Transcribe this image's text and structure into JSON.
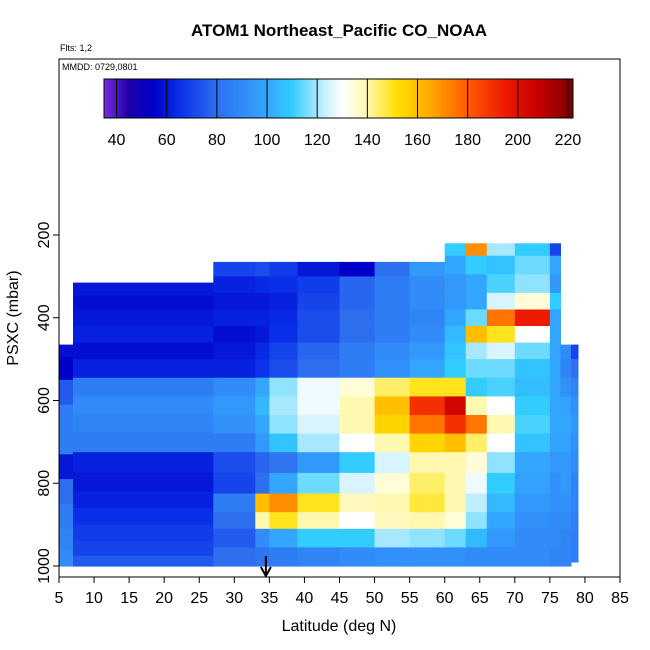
{
  "chart_data": {
    "type": "heatmap",
    "title": "ATOM1 Northeast_Pacific CO_NOAA",
    "flights_label": "Flts: 1,2",
    "date_label": "MMDD: 0729,0801",
    "xlabel": "Latitude (deg N)",
    "ylabel": "PSXC (mbar)",
    "xlim": [
      5,
      85
    ],
    "ylim": [
      1000,
      0
    ],
    "x_ticks": [
      5,
      10,
      15,
      20,
      25,
      30,
      35,
      40,
      45,
      50,
      55,
      60,
      65,
      70,
      75,
      80,
      85
    ],
    "y_ticks": [
      200,
      400,
      600,
      800,
      1000
    ],
    "colorbar": {
      "range": [
        35,
        222
      ],
      "ticks": [
        40,
        60,
        80,
        100,
        120,
        140,
        160,
        180,
        200,
        220
      ],
      "stops": [
        {
          "v": 35,
          "color": "#7a2be0"
        },
        {
          "v": 45,
          "color": "#1c00a8"
        },
        {
          "v": 55,
          "color": "#0000c8"
        },
        {
          "v": 65,
          "color": "#0a2fe8"
        },
        {
          "v": 80,
          "color": "#2e6ff0"
        },
        {
          "v": 100,
          "color": "#33a6ff"
        },
        {
          "v": 110,
          "color": "#33ccff"
        },
        {
          "v": 122,
          "color": "#bfeeff"
        },
        {
          "v": 130,
          "color": "#ffffff"
        },
        {
          "v": 140,
          "color": "#fff8b0"
        },
        {
          "v": 152,
          "color": "#ffe000"
        },
        {
          "v": 165,
          "color": "#ffaa00"
        },
        {
          "v": 180,
          "color": "#ff5a00"
        },
        {
          "v": 195,
          "color": "#ee1a00"
        },
        {
          "v": 208,
          "color": "#c80000"
        },
        {
          "v": 222,
          "color": "#7a0000"
        }
      ]
    },
    "arrow_latitude": 34.5,
    "profiles": [
      {
        "lat": [
          5.0,
          7.0
        ],
        "p": [
          [
            465,
            1000
          ]
        ],
        "values": [
          [
            470,
            58
          ],
          [
            520,
            55
          ],
          [
            580,
            75
          ],
          [
            640,
            85
          ],
          [
            700,
            85
          ],
          [
            760,
            60
          ],
          [
            820,
            80
          ],
          [
            880,
            85
          ],
          [
            940,
            88
          ],
          [
            980,
            90
          ]
        ]
      },
      {
        "lat": [
          7.0,
          27.0
        ],
        "p": [
          [
            315,
            1000
          ]
        ],
        "values": [
          [
            330,
            60
          ],
          [
            360,
            58
          ],
          [
            400,
            60
          ],
          [
            440,
            62
          ],
          [
            480,
            58
          ],
          [
            520,
            62
          ],
          [
            570,
            85
          ],
          [
            610,
            90
          ],
          [
            650,
            88
          ],
          [
            700,
            85
          ],
          [
            750,
            62
          ],
          [
            800,
            60
          ],
          [
            840,
            62
          ],
          [
            880,
            65
          ],
          [
            920,
            68
          ],
          [
            960,
            70
          ],
          [
            990,
            75
          ]
        ]
      },
      {
        "lat": [
          27.0,
          33.0
        ],
        "p": [
          [
            265,
            1000
          ]
        ],
        "values": [
          [
            280,
            70
          ],
          [
            320,
            62
          ],
          [
            360,
            60
          ],
          [
            400,
            62
          ],
          [
            440,
            58
          ],
          [
            480,
            60
          ],
          [
            520,
            62
          ],
          [
            570,
            90
          ],
          [
            610,
            95
          ],
          [
            660,
            92
          ],
          [
            700,
            85
          ],
          [
            750,
            72
          ],
          [
            800,
            70
          ],
          [
            850,
            85
          ],
          [
            890,
            80
          ],
          [
            930,
            75
          ],
          [
            980,
            80
          ]
        ]
      },
      {
        "lat": [
          33.0,
          35.0
        ],
        "p": [
          [
            265,
            1000
          ]
        ],
        "values": [
          [
            280,
            72
          ],
          [
            320,
            64
          ],
          [
            360,
            60
          ],
          [
            400,
            62
          ],
          [
            440,
            60
          ],
          [
            480,
            64
          ],
          [
            520,
            66
          ],
          [
            570,
            100
          ],
          [
            610,
            105
          ],
          [
            660,
            100
          ],
          [
            700,
            95
          ],
          [
            750,
            78
          ],
          [
            800,
            80
          ],
          [
            850,
            160
          ],
          [
            890,
            140
          ],
          [
            930,
            90
          ],
          [
            980,
            82
          ]
        ]
      },
      {
        "lat": [
          35.0,
          39.0
        ],
        "p": [
          [
            265,
            1000
          ]
        ],
        "values": [
          [
            280,
            68
          ],
          [
            320,
            65
          ],
          [
            360,
            62
          ],
          [
            400,
            64
          ],
          [
            440,
            65
          ],
          [
            480,
            70
          ],
          [
            520,
            72
          ],
          [
            570,
            118
          ],
          [
            610,
            120
          ],
          [
            660,
            118
          ],
          [
            700,
            108
          ],
          [
            750,
            82
          ],
          [
            800,
            100
          ],
          [
            850,
            170
          ],
          [
            890,
            150
          ],
          [
            930,
            100
          ],
          [
            980,
            85
          ]
        ]
      },
      {
        "lat": [
          39.0,
          45.0
        ],
        "p": [
          [
            265,
            1000
          ]
        ],
        "values": [
          [
            280,
            60
          ],
          [
            320,
            68
          ],
          [
            360,
            70
          ],
          [
            400,
            72
          ],
          [
            440,
            72
          ],
          [
            480,
            78
          ],
          [
            520,
            80
          ],
          [
            570,
            128
          ],
          [
            610,
            128
          ],
          [
            660,
            125
          ],
          [
            700,
            120
          ],
          [
            750,
            95
          ],
          [
            800,
            115
          ],
          [
            850,
            150
          ],
          [
            890,
            140
          ],
          [
            930,
            110
          ],
          [
            980,
            88
          ]
        ]
      },
      {
        "lat": [
          45.0,
          50.0
        ],
        "p": [
          [
            265,
            1000
          ]
        ],
        "values": [
          [
            280,
            55
          ],
          [
            320,
            78
          ],
          [
            360,
            78
          ],
          [
            400,
            80
          ],
          [
            440,
            80
          ],
          [
            480,
            85
          ],
          [
            520,
            85
          ],
          [
            570,
            135
          ],
          [
            610,
            140
          ],
          [
            660,
            140
          ],
          [
            700,
            130
          ],
          [
            750,
            110
          ],
          [
            800,
            125
          ],
          [
            850,
            138
          ],
          [
            890,
            130
          ],
          [
            930,
            110
          ],
          [
            980,
            90
          ]
        ]
      },
      {
        "lat": [
          50.0,
          55.0
        ],
        "p": [
          [
            265,
            1000
          ]
        ],
        "values": [
          [
            280,
            80
          ],
          [
            320,
            85
          ],
          [
            360,
            85
          ],
          [
            400,
            85
          ],
          [
            440,
            85
          ],
          [
            480,
            90
          ],
          [
            520,
            92
          ],
          [
            570,
            145
          ],
          [
            610,
            160
          ],
          [
            660,
            155
          ],
          [
            700,
            140
          ],
          [
            750,
            125
          ],
          [
            800,
            135
          ],
          [
            850,
            140
          ],
          [
            890,
            138
          ],
          [
            930,
            120
          ],
          [
            980,
            92
          ]
        ]
      },
      {
        "lat": [
          55.0,
          60.0
        ],
        "p": [
          [
            265,
            1000
          ]
        ],
        "values": [
          [
            280,
            95
          ],
          [
            320,
            90
          ],
          [
            360,
            90
          ],
          [
            400,
            88
          ],
          [
            440,
            90
          ],
          [
            480,
            95
          ],
          [
            520,
            100
          ],
          [
            570,
            150
          ],
          [
            610,
            190
          ],
          [
            660,
            175
          ],
          [
            700,
            155
          ],
          [
            750,
            140
          ],
          [
            800,
            145
          ],
          [
            850,
            148
          ],
          [
            890,
            140
          ],
          [
            930,
            118
          ],
          [
            980,
            92
          ]
        ]
      },
      {
        "lat": [
          60.0,
          63.0
        ],
        "p": [
          [
            220,
            1000
          ]
        ],
        "values": [
          [
            230,
            110
          ],
          [
            270,
            100
          ],
          [
            320,
            95
          ],
          [
            360,
            95
          ],
          [
            400,
            100
          ],
          [
            440,
            105
          ],
          [
            480,
            108
          ],
          [
            520,
            110
          ],
          [
            570,
            150
          ],
          [
            610,
            205
          ],
          [
            660,
            190
          ],
          [
            700,
            160
          ],
          [
            750,
            140
          ],
          [
            800,
            140
          ],
          [
            850,
            140
          ],
          [
            890,
            135
          ],
          [
            930,
            115
          ],
          [
            980,
            92
          ]
        ]
      },
      {
        "lat": [
          63.0,
          66.0
        ],
        "p": [
          [
            220,
            1000
          ]
        ],
        "values": [
          [
            230,
            170
          ],
          [
            270,
            110
          ],
          [
            320,
            100
          ],
          [
            360,
            100
          ],
          [
            400,
            115
          ],
          [
            440,
            160
          ],
          [
            480,
            120
          ],
          [
            520,
            115
          ],
          [
            570,
            110
          ],
          [
            610,
            140
          ],
          [
            660,
            175
          ],
          [
            700,
            145
          ],
          [
            750,
            135
          ],
          [
            800,
            128
          ],
          [
            850,
            122
          ],
          [
            890,
            118
          ],
          [
            930,
            105
          ],
          [
            980,
            90
          ]
        ]
      },
      {
        "lat": [
          66.0,
          70.0
        ],
        "p": [
          [
            220,
            1000
          ]
        ],
        "values": [
          [
            230,
            120
          ],
          [
            270,
            108
          ],
          [
            320,
            112
          ],
          [
            360,
            125
          ],
          [
            400,
            175
          ],
          [
            440,
            150
          ],
          [
            480,
            125
          ],
          [
            520,
            115
          ],
          [
            570,
            112
          ],
          [
            610,
            130
          ],
          [
            660,
            140
          ],
          [
            700,
            130
          ],
          [
            750,
            118
          ],
          [
            800,
            110
          ],
          [
            850,
            105
          ],
          [
            890,
            100
          ],
          [
            930,
            95
          ],
          [
            980,
            90
          ]
        ]
      },
      {
        "lat": [
          70.0,
          75.0
        ],
        "p": [
          [
            220,
            1000
          ]
        ],
        "values": [
          [
            230,
            110
          ],
          [
            270,
            115
          ],
          [
            320,
            118
          ],
          [
            360,
            135
          ],
          [
            400,
            195
          ],
          [
            440,
            130
          ],
          [
            480,
            115
          ],
          [
            520,
            108
          ],
          [
            570,
            106
          ],
          [
            610,
            110
          ],
          [
            660,
            112
          ],
          [
            700,
            108
          ],
          [
            750,
            100
          ],
          [
            800,
            98
          ],
          [
            850,
            95
          ],
          [
            890,
            92
          ],
          [
            930,
            90
          ],
          [
            980,
            90
          ]
        ]
      },
      {
        "lat": [
          75.0,
          76.5
        ],
        "p": [
          [
            220,
            1000
          ]
        ],
        "values": [
          [
            230,
            70
          ],
          [
            270,
            100
          ],
          [
            320,
            95
          ],
          [
            360,
            110
          ],
          [
            400,
            100
          ],
          [
            440,
            100
          ],
          [
            480,
            100
          ],
          [
            520,
            100
          ],
          [
            570,
            100
          ],
          [
            610,
            100
          ],
          [
            660,
            100
          ],
          [
            700,
            98
          ],
          [
            750,
            95
          ],
          [
            800,
            92
          ],
          [
            850,
            92
          ],
          [
            890,
            90
          ],
          [
            930,
            90
          ],
          [
            980,
            88
          ]
        ]
      },
      {
        "lat": [
          76.5,
          78.0
        ],
        "p": [
          [
            465,
            1000
          ]
        ],
        "values": [
          [
            480,
            90
          ],
          [
            520,
            88
          ],
          [
            570,
            92
          ],
          [
            610,
            98
          ],
          [
            660,
            100
          ],
          [
            700,
            98
          ],
          [
            750,
            95
          ],
          [
            800,
            95
          ],
          [
            850,
            92
          ],
          [
            890,
            90
          ],
          [
            930,
            88
          ],
          [
            980,
            88
          ]
        ]
      },
      {
        "lat": [
          78.0,
          79.0
        ],
        "p": [
          [
            465,
            990
          ]
        ],
        "values": [
          [
            480,
            70
          ],
          [
            520,
            80
          ],
          [
            570,
            88
          ],
          [
            610,
            92
          ],
          [
            660,
            95
          ],
          [
            700,
            92
          ],
          [
            750,
            90
          ],
          [
            800,
            88
          ],
          [
            850,
            88
          ],
          [
            890,
            86
          ],
          [
            930,
            85
          ],
          [
            980,
            85
          ]
        ]
      }
    ]
  }
}
